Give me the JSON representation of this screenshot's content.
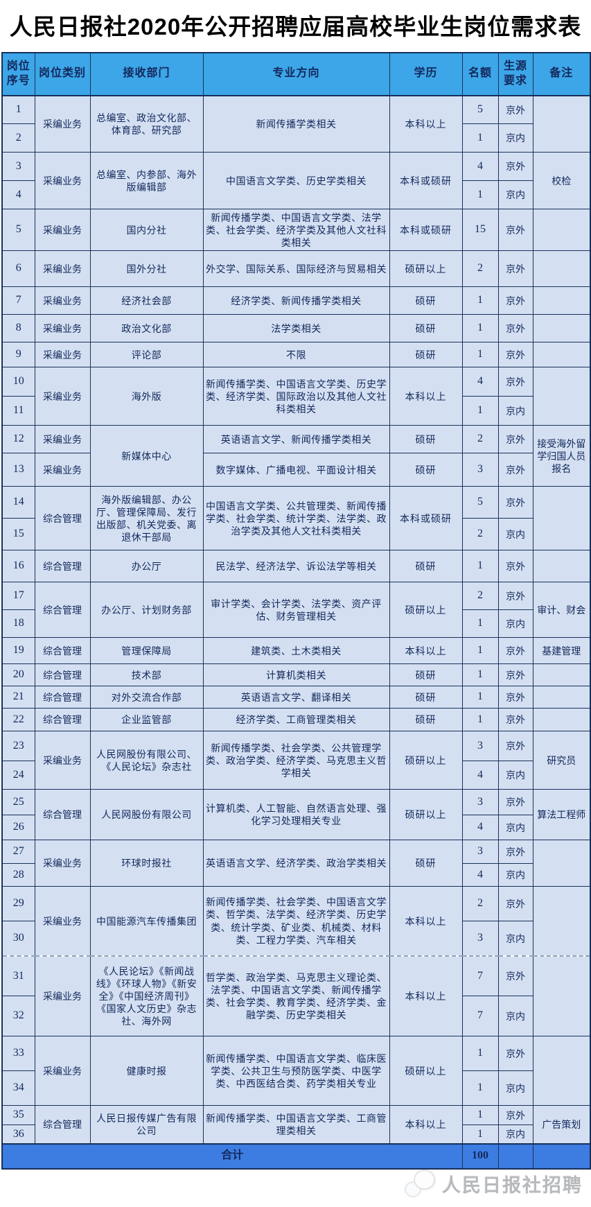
{
  "page": {
    "title": "人民日报社2020年公开招聘应届高校毕业生岗位需求表"
  },
  "table": {
    "headers": [
      "岗位序号",
      "岗位类别",
      "接收部门",
      "专业方向",
      "学历",
      "名额",
      "生源要求",
      "备注"
    ],
    "groups": [
      {
        "category": "采编业务",
        "dept": "总编室、政治文化部、体育部、研究部",
        "major": "新闻传播学类相关",
        "edu": "本科以上",
        "note": "",
        "rows": [
          {
            "no": "1",
            "quota": "5",
            "source": "京外"
          },
          {
            "no": "2",
            "quota": "1",
            "source": "京内"
          }
        ]
      },
      {
        "category": "采编业务",
        "dept": "总编室、内参部、海外版编辑部",
        "major": "中国语言文学类、历史学类相关",
        "edu": "本科或硕研",
        "note": "校检",
        "rows": [
          {
            "no": "3",
            "quota": "4",
            "source": "京外"
          },
          {
            "no": "4",
            "quota": "1",
            "source": "京内"
          }
        ]
      },
      {
        "category": "采编业务",
        "dept": "国内分社",
        "major": "新闻传播学类、中国语言文学类、法学类、社会学类、经济学类及其他人文社科类相关",
        "edu": "本科或硕研",
        "note": "",
        "rows": [
          {
            "no": "5",
            "quota": "15",
            "source": "京外"
          }
        ]
      },
      {
        "category": "采编业务",
        "dept": "国外分社",
        "major": "外交学、国际关系、国际经济与贸易相关",
        "edu": "硕研以上",
        "note": "",
        "rows": [
          {
            "no": "6",
            "quota": "2",
            "source": "京外"
          }
        ]
      },
      {
        "category": "采编业务",
        "dept": "经济社会部",
        "major": "经济学类、新闻传播学类相关",
        "edu": "硕研",
        "note": "",
        "rows": [
          {
            "no": "7",
            "quota": "1",
            "source": "京外"
          }
        ]
      },
      {
        "category": "采编业务",
        "dept": "政治文化部",
        "major": "法学类相关",
        "edu": "硕研",
        "note": "",
        "rows": [
          {
            "no": "8",
            "quota": "1",
            "source": "京外"
          }
        ]
      },
      {
        "category": "采编业务",
        "dept": "评论部",
        "major": "不限",
        "edu": "硕研",
        "note": "",
        "rows": [
          {
            "no": "9",
            "quota": "1",
            "source": "京外"
          }
        ]
      },
      {
        "category": "采编业务",
        "dept": "海外版",
        "major": "新闻传播学类、中国语言文学类、历史学类、经济学类、国际政治以及其他人文社科类相关",
        "edu": "本科以上",
        "note": "",
        "rows": [
          {
            "no": "10",
            "quota": "4",
            "source": "京外"
          },
          {
            "no": "11",
            "quota": "1",
            "source": "京内"
          }
        ]
      },
      {
        "categories": [
          "采编业务",
          "采编业务"
        ],
        "dept": "新媒体中心",
        "majors": [
          "英语语言文学、新闻传播学类相关",
          "数字媒体、广播电视、平面设计相关"
        ],
        "edus": [
          "硕研",
          "硕研"
        ],
        "note": "接受海外留学归国人员报名",
        "rows": [
          {
            "no": "12",
            "quota": "2",
            "source": "京外"
          },
          {
            "no": "13",
            "quota": "3",
            "source": "京外"
          }
        ]
      },
      {
        "category": "综合管理",
        "dept": "海外版编辑部、办公厅、管理保障局、发行出版部、机关党委、离退休干部局",
        "major": "中国语言文学类、公共管理类、新闻传播学类、社会学类、统计学类、法学类、政治学类及其他人文社科类相关",
        "edu": "本科或硕研",
        "note": "",
        "rows": [
          {
            "no": "14",
            "quota": "5",
            "source": "京外"
          },
          {
            "no": "15",
            "quota": "2",
            "source": "京内"
          }
        ]
      },
      {
        "category": "综合管理",
        "dept": "办公厅",
        "major": "民法学、经济法学、诉讼法学等相关",
        "edu": "硕研",
        "note": "",
        "rows": [
          {
            "no": "16",
            "quota": "1",
            "source": "京外"
          }
        ]
      },
      {
        "category": "综合管理",
        "dept": "办公厅、计划财务部",
        "major": "审计学类、会计学类、法学类、资产评估、财务管理相关",
        "edu": "硕研以上",
        "note": "审计、财会",
        "rows": [
          {
            "no": "17",
            "quota": "2",
            "source": "京外"
          },
          {
            "no": "18",
            "quota": "1",
            "source": "京内"
          }
        ]
      },
      {
        "category": "综合管理",
        "dept": "管理保障局",
        "major": "建筑类、土木类相关",
        "edu": "本科以上",
        "note": "基建管理",
        "rows": [
          {
            "no": "19",
            "quota": "1",
            "source": "京外"
          }
        ]
      },
      {
        "category": "综合管理",
        "dept": "技术部",
        "major": "计算机类相关",
        "edu": "硕研",
        "note": "",
        "rows": [
          {
            "no": "20",
            "quota": "1",
            "source": "京外"
          }
        ]
      },
      {
        "category": "综合管理",
        "dept": "对外交流合作部",
        "major": "英语语言文学、翻译相关",
        "edu": "硕研",
        "note": "",
        "rows": [
          {
            "no": "21",
            "quota": "1",
            "source": "京外"
          }
        ]
      },
      {
        "category": "综合管理",
        "dept": "企业监管部",
        "major": "经济学类、工商管理类相关",
        "edu": "硕研",
        "note": "",
        "rows": [
          {
            "no": "22",
            "quota": "1",
            "source": "京外"
          }
        ]
      },
      {
        "category": "采编业务",
        "dept": "人民网股份有限公司、《人民论坛》杂志社",
        "major": "新闻传播学类、社会学类、公共管理学类、政治学类、经济学类、马克思主义哲学相关",
        "edu": "硕研以上",
        "note": "研究员",
        "rows": [
          {
            "no": "23",
            "quota": "3",
            "source": "京外"
          },
          {
            "no": "24",
            "quota": "4",
            "source": "京内"
          }
        ]
      },
      {
        "category": "综合管理",
        "dept": "人民网股份有限公司",
        "major": "计算机类、人工智能、自然语言处理、强化学习处理相关专业",
        "edu": "硕研以上",
        "note": "算法工程师",
        "rows": [
          {
            "no": "25",
            "quota": "3",
            "source": "京外"
          },
          {
            "no": "26",
            "quota": "4",
            "source": "京内"
          }
        ]
      },
      {
        "category": "采编业务",
        "dept": "环球时报社",
        "major": "英语语言文学、经济学类、政治学类相关",
        "edu": "硕研",
        "note": "",
        "rows": [
          {
            "no": "27",
            "quota": "3",
            "source": "京外"
          },
          {
            "no": "28",
            "quota": "4",
            "source": "京内"
          }
        ]
      },
      {
        "category": "采编业务",
        "dept": "中国能源汽车传播集团",
        "major": "新闻传播学类、社会学类、中国语言文学类、哲学类、法学类、经济学类、历史学类、统计学类、矿业类、机械类、材料类、工程力学类、汽车相关",
        "edu": "本科以上",
        "note": "",
        "rows": [
          {
            "no": "29",
            "quota": "2",
            "source": "京外"
          },
          {
            "no": "30",
            "quota": "3",
            "source": "京内"
          }
        ]
      },
      {
        "category": "采编业务",
        "dept": "《人民论坛》《新闻战线》《环球人物》《新安全》《中国经济周刊》《国家人文历史》杂志社、海外网",
        "major": "哲学类、政治学类、马克思主义理论类、法学类、中国语言文学类、新闻传播学类、社会学类、教育学类、经济学类、金融学类、历史学类相关",
        "edu": "本科以上",
        "note": "",
        "rows": [
          {
            "no": "31",
            "quota": "7",
            "source": "京外"
          },
          {
            "no": "32",
            "quota": "7",
            "source": "京内"
          }
        ]
      },
      {
        "category": "采编业务",
        "dept": "健康时报",
        "major": "新闻传播学类、中国语言文学类、临床医学类、公共卫生与预防医学类、中医学类、中西医结合类、药学类相关专业",
        "edu": "硕研以上",
        "note": "",
        "rows": [
          {
            "no": "33",
            "quota": "1",
            "source": "京外"
          },
          {
            "no": "34",
            "quota": "1",
            "source": "京内"
          }
        ]
      },
      {
        "category": "综合管理",
        "dept": "人民日报传媒广告有限公司",
        "major": "新闻传播学类、中国语言文学类、工商管理类相关",
        "edu": "本科以上",
        "note": "广告策划",
        "rows": [
          {
            "no": "35",
            "quota": "1",
            "source": "京外"
          },
          {
            "no": "36",
            "quota": "1",
            "source": "京内"
          }
        ]
      }
    ],
    "total": {
      "label": "合计",
      "quota": "100"
    }
  },
  "footer": {
    "brand": "人民日报社招聘"
  },
  "colors": {
    "header_bg": "#3ca6e8",
    "cell_bg": "#d4e0f2",
    "total_bg": "#3d7de2",
    "border": "#1b3058",
    "text": "#13275a",
    "title_text": "#000000",
    "footer_text": "#b7b9bd"
  }
}
